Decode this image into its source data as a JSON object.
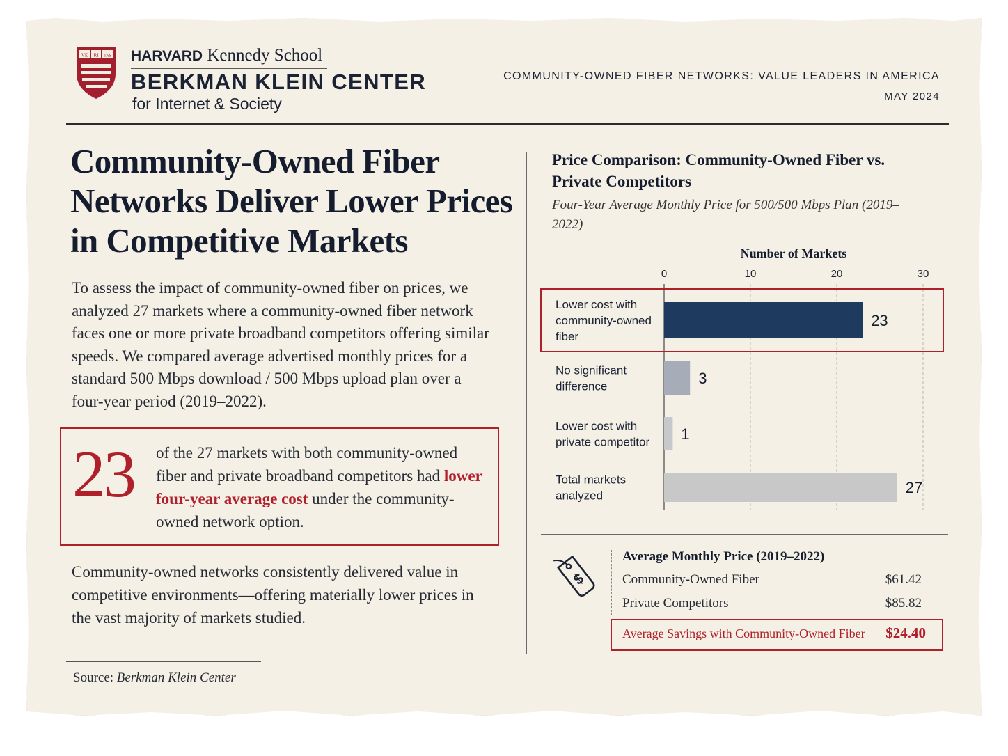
{
  "header": {
    "org_line_bold": "HARVARD",
    "org_line_rest": " Kennedy School",
    "center_name": "BERKMAN KLEIN CENTER",
    "center_sub": "for Internet & Society",
    "shield_text": [
      "VE",
      "RI",
      "TAS"
    ],
    "series_title": "COMMUNITY-OWNED FIBER NETWORKS: VALUE LEADERS IN AMERICA",
    "date": "MAY 2024"
  },
  "main": {
    "headline": "Community-Owned Fiber Networks Deliver Lower Prices in Competitive Markets",
    "intro": "To assess the impact of community-owned fiber on prices, we analyzed 27 markets where a community-owned fiber network faces one or more private broadband competitors offering similar speeds. We compared average advertised monthly prices for a standard 500 Mbps download / 500 Mbps upload plan over a four-year period (2019–2022).",
    "callout_number": "23",
    "callout_text_before": "of the 27 markets with both community-owned fiber and private broadband competitors had ",
    "callout_highlight": "lower four-year average cost",
    "callout_text_after": " under the community-owned network option.",
    "closing": "Community-owned networks consistently delivered value in competitive environments—offering materially lower prices in the vast majority of markets studied.",
    "source_label": "Source: ",
    "source_name": "Berkman Klein Center"
  },
  "chart_data": {
    "type": "bar",
    "orientation": "horizontal",
    "title": "Price Comparison: Community-Owned Fiber vs. Private Competitors",
    "subtitle": "Four-Year Average Monthly Price for 500/500 Mbps Plan (2019–2022)",
    "xlabel": "Number of Markets",
    "xlim": [
      0,
      30
    ],
    "xticks": [
      0,
      10,
      20,
      30
    ],
    "grid": "vertical dashed",
    "categories": [
      [
        "Lower cost with",
        "community-owned",
        "fiber"
      ],
      [
        "No significant",
        "difference"
      ],
      [
        "Lower cost with",
        "private competitor"
      ],
      [
        "Total markets",
        "analyzed"
      ]
    ],
    "values": [
      23,
      3,
      1,
      27
    ],
    "bar_colors": [
      "#1e3a5f",
      "#a6adb9",
      "#c6c8cc",
      "#c8c8c8"
    ],
    "highlighted_category": 0,
    "highlight_color": "#b0202a"
  },
  "price_table": {
    "icon": "price-tag-dollar-icon",
    "title": "Average Monthly Price (2019–2022)",
    "rows": [
      {
        "label": "Community-Owned Fiber",
        "value": "$61.42"
      },
      {
        "label": "Private Competitors",
        "value": "$85.82"
      }
    ],
    "savings_label": "Average Savings with Community-Owned Fiber",
    "savings_value": "$24.40"
  },
  "colors": {
    "accent_red": "#b0202a",
    "navy": "#1e3a5f",
    "paper": "#f4f0e6",
    "ink": "#1b2233"
  }
}
